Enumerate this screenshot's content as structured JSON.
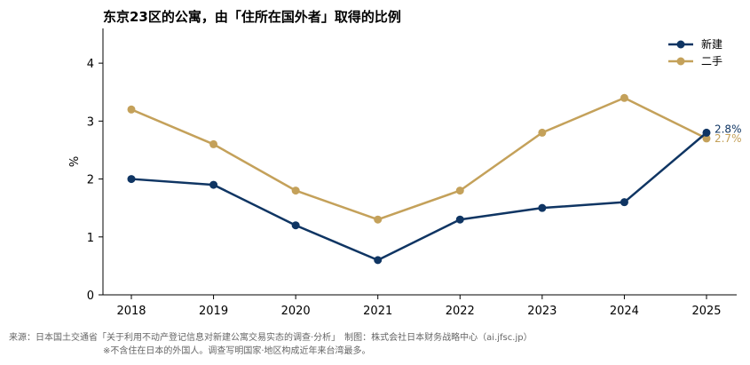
{
  "chart_data": {
    "type": "line",
    "title": "东京23区的公寓，由「住所在国外者」取得的比例",
    "ylabel": "%",
    "xlabel": "",
    "x": [
      "2018",
      "2019",
      "2020",
      "2021",
      "2022",
      "2023",
      "2024",
      "2025"
    ],
    "ylim": [
      0,
      4.6
    ],
    "yticks": [
      0,
      1,
      2,
      3,
      4
    ],
    "grid": false,
    "legend_position": "top-right",
    "series": [
      {
        "name": "新建",
        "color": "#0f3563",
        "values": [
          2.0,
          1.9,
          1.2,
          0.6,
          1.3,
          1.5,
          1.6,
          2.8
        ],
        "end_label": "2.8%"
      },
      {
        "name": "二手",
        "color": "#c4a15a",
        "values": [
          3.2,
          2.6,
          1.8,
          1.3,
          1.8,
          2.8,
          3.4,
          2.7
        ],
        "end_label": "2.7%"
      }
    ]
  },
  "footer": {
    "source": "来源：日本国土交通省「关于利用不动产登记信息对新建公寓交易实态的调查·分析」　制图：株式会社日本财务战略中心（ai.jfsc.jp）",
    "note": "※不含住在日本的外国人。调查写明国家·地区构成近年来台湾最多。"
  }
}
